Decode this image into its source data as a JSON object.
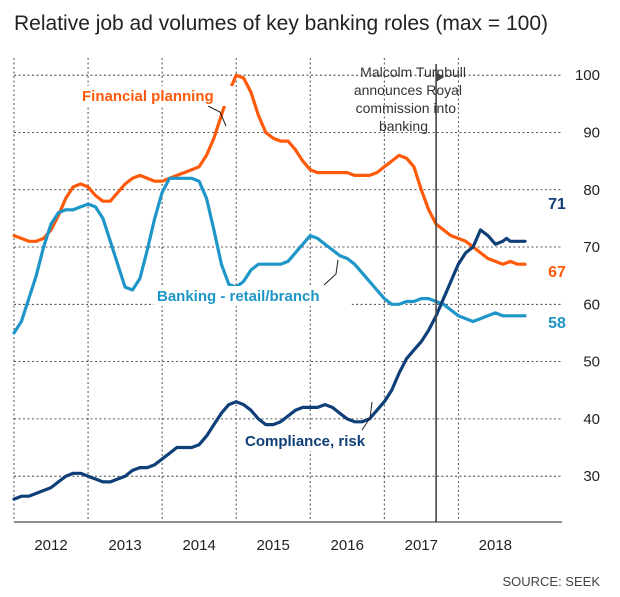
{
  "chart_data": {
    "type": "line",
    "title": "Relative job ad volumes of key banking roles (max = 100)",
    "source": "SOURCE: SEEK",
    "x_tick_labels": [
      "2012",
      "2013",
      "2014",
      "2015",
      "2016",
      "2017",
      "2018"
    ],
    "x_ticks": [
      2012,
      2013,
      2014,
      2015,
      2016,
      2017,
      2018
    ],
    "xlim": [
      2011.5,
      2018.9
    ],
    "y_tick_labels": [
      "30",
      "40",
      "50",
      "60",
      "70",
      "80",
      "90",
      "100"
    ],
    "y_ticks": [
      30,
      40,
      50,
      60,
      70,
      80,
      90,
      100
    ],
    "ylim": [
      22,
      103
    ],
    "grid": true,
    "annotation": {
      "x": 2017.2,
      "lines": [
        "Malcolm Turnbull",
        "announces Royal",
        "commission into",
        "banking"
      ]
    },
    "colors": {
      "financial_planning": "#ff5a0a",
      "banking_retail": "#1e96c8",
      "compliance": "#0f3f78"
    },
    "series": [
      {
        "name": "Financial planning",
        "color": "#ff5a0a",
        "end_label": "67",
        "x": [
          2011.5,
          2011.6,
          2011.7,
          2011.8,
          2011.9,
          2012.0,
          2012.1,
          2012.2,
          2012.3,
          2012.4,
          2012.5,
          2012.6,
          2012.7,
          2012.8,
          2012.9,
          2013.0,
          2013.1,
          2013.2,
          2013.3,
          2013.4,
          2013.5,
          2013.6,
          2013.7,
          2013.8,
          2013.9,
          2014.0,
          2014.1,
          2014.2,
          2014.3,
          2014.4,
          2014.5,
          2014.6,
          2014.7,
          2014.8,
          2014.9,
          2015.0,
          2015.1,
          2015.2,
          2015.3,
          2015.4,
          2015.5,
          2015.6,
          2015.7,
          2015.8,
          2015.9,
          2016.0,
          2016.1,
          2016.2,
          2016.3,
          2016.4,
          2016.5,
          2016.6,
          2016.7,
          2016.8,
          2016.9,
          2017.0,
          2017.1,
          2017.2,
          2017.3,
          2017.4,
          2017.5,
          2017.6,
          2017.7,
          2017.8,
          2017.9,
          2018.0,
          2018.1,
          2018.2,
          2018.3,
          2018.4
        ],
        "values": [
          72,
          71.5,
          71,
          71,
          71.5,
          73,
          75.5,
          78.5,
          80.5,
          81,
          80.5,
          79,
          78,
          78,
          79.5,
          81,
          82,
          82.5,
          82,
          81.5,
          81.5,
          82,
          82.5,
          83,
          83.5,
          84,
          86,
          89,
          93,
          97,
          100,
          99.5,
          97,
          93,
          90,
          89,
          88.5,
          88.5,
          87,
          85,
          83.5,
          83,
          83,
          83,
          83,
          83,
          82.5,
          82.5,
          82.5,
          83,
          84,
          85,
          86,
          85.5,
          84,
          80,
          76.5,
          74,
          73,
          72,
          71.5,
          71,
          70,
          69,
          68,
          67.5,
          67,
          67.5,
          67,
          67
        ]
      },
      {
        "name": "Banking - retail/branch",
        "color": "#1e96c8",
        "end_label": "58",
        "x": [
          2011.5,
          2011.6,
          2011.7,
          2011.8,
          2011.9,
          2012.0,
          2012.1,
          2012.2,
          2012.3,
          2012.4,
          2012.5,
          2012.6,
          2012.7,
          2012.8,
          2012.9,
          2013.0,
          2013.1,
          2013.2,
          2013.3,
          2013.4,
          2013.5,
          2013.6,
          2013.7,
          2013.8,
          2013.9,
          2014.0,
          2014.1,
          2014.2,
          2014.3,
          2014.4,
          2014.5,
          2014.6,
          2014.7,
          2014.8,
          2014.9,
          2015.0,
          2015.1,
          2015.2,
          2015.3,
          2015.4,
          2015.5,
          2015.6,
          2015.7,
          2015.8,
          2015.9,
          2016.0,
          2016.1,
          2016.2,
          2016.3,
          2016.4,
          2016.5,
          2016.6,
          2016.7,
          2016.8,
          2016.9,
          2017.0,
          2017.1,
          2017.2,
          2017.3,
          2017.4,
          2017.5,
          2017.6,
          2017.7,
          2017.8,
          2017.9,
          2018.0,
          2018.1,
          2018.2,
          2018.3,
          2018.4
        ],
        "values": [
          55,
          57,
          61,
          65,
          70,
          74,
          76,
          76.5,
          76.5,
          77,
          77.5,
          77,
          75,
          71,
          67,
          63,
          62.5,
          64.5,
          69.5,
          75,
          79.5,
          82,
          82,
          82,
          82,
          81.5,
          78.5,
          73,
          67,
          63.5,
          63,
          64,
          66,
          67,
          67,
          67,
          67,
          67.5,
          69,
          70.5,
          72,
          71.5,
          70.5,
          69.5,
          68.5,
          68,
          67,
          65.5,
          64,
          62.5,
          61,
          60,
          60,
          60.5,
          60.5,
          61,
          61,
          60.5,
          60,
          59,
          58,
          57.5,
          57,
          57.5,
          58,
          58.5,
          58,
          58,
          58,
          58
        ]
      },
      {
        "name": "Compliance, risk",
        "color": "#0f3f78",
        "end_label": "71",
        "x": [
          2011.5,
          2011.6,
          2011.7,
          2011.8,
          2011.9,
          2012.0,
          2012.1,
          2012.2,
          2012.3,
          2012.4,
          2012.5,
          2012.6,
          2012.7,
          2012.8,
          2012.9,
          2013.0,
          2013.1,
          2013.2,
          2013.3,
          2013.4,
          2013.5,
          2013.6,
          2013.7,
          2013.8,
          2013.9,
          2014.0,
          2014.1,
          2014.2,
          2014.3,
          2014.4,
          2014.5,
          2014.6,
          2014.7,
          2014.8,
          2014.9,
          2015.0,
          2015.1,
          2015.2,
          2015.3,
          2015.4,
          2015.5,
          2015.6,
          2015.7,
          2015.8,
          2015.9,
          2016.0,
          2016.1,
          2016.2,
          2016.3,
          2016.4,
          2016.5,
          2016.6,
          2016.7,
          2016.8,
          2016.9,
          2017.0,
          2017.1,
          2017.2,
          2017.3,
          2017.4,
          2017.5,
          2017.6,
          2017.7,
          2017.8,
          2017.9,
          2018.0,
          2018.1,
          2018.15,
          2018.2,
          2018.25,
          2018.3,
          2018.35,
          2018.4
        ],
        "values": [
          26,
          26.5,
          26.5,
          27,
          27.5,
          28,
          29,
          30,
          30.5,
          30.5,
          30,
          29.5,
          29,
          29,
          29.5,
          30,
          31,
          31.5,
          31.5,
          32,
          33,
          34,
          35,
          35,
          35,
          35.5,
          37,
          39,
          41,
          42.5,
          43,
          42.5,
          41.5,
          40,
          39,
          39,
          39.5,
          40.5,
          41.5,
          42,
          42,
          42,
          42.5,
          42,
          41,
          40,
          39.5,
          39.5,
          40,
          41.5,
          43,
          45,
          48,
          50.5,
          52,
          53.5,
          55.5,
          58,
          61,
          64,
          67,
          69,
          70,
          73,
          72,
          70.5,
          71,
          71.5,
          71,
          71,
          71,
          71,
          71
        ]
      }
    ]
  }
}
